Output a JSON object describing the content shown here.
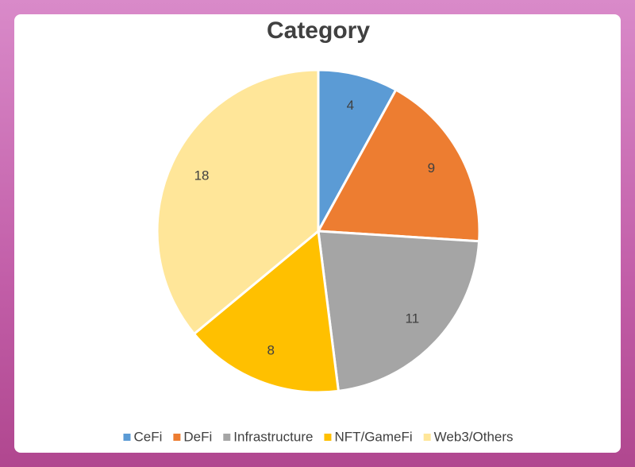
{
  "chart_data": {
    "type": "pie",
    "title": "Category",
    "categories": [
      "CeFi",
      "DeFi",
      "Infrastructure",
      "NFT/GameFi",
      "Web3/Others"
    ],
    "values": [
      4,
      9,
      11,
      8,
      18
    ],
    "colors": [
      "#5b9bd5",
      "#ed7d31",
      "#a5a5a5",
      "#ffc000",
      "#ffe699"
    ],
    "legend": "bottom"
  }
}
